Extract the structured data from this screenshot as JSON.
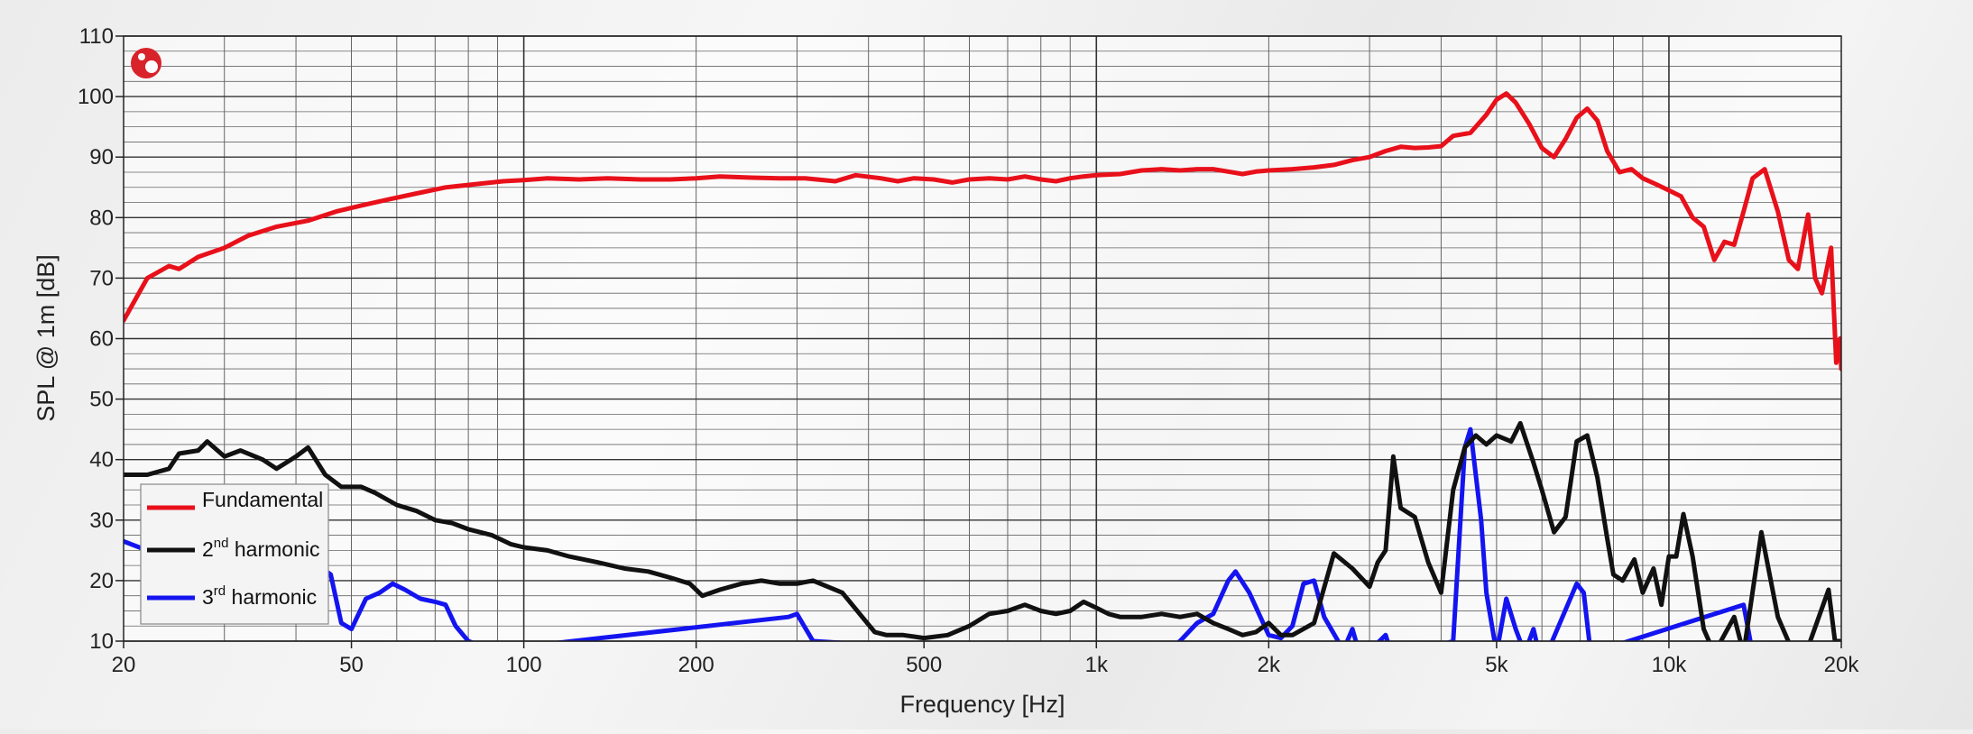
{
  "chart_data": {
    "type": "line",
    "title": "",
    "xlabel": "Frequency [Hz]",
    "ylabel": "SPL @ 1m [dB]",
    "x_scale": "log",
    "xlim": [
      20,
      20000
    ],
    "ylim": [
      10,
      110
    ],
    "grid": true,
    "legend_position": "bottom-left",
    "x_ticks": [
      {
        "value": 20,
        "label": "20"
      },
      {
        "value": 50,
        "label": "50"
      },
      {
        "value": 100,
        "label": "100"
      },
      {
        "value": 200,
        "label": "200"
      },
      {
        "value": 500,
        "label": "500"
      },
      {
        "value": 1000,
        "label": "1k"
      },
      {
        "value": 2000,
        "label": "2k"
      },
      {
        "value": 5000,
        "label": "5k"
      },
      {
        "value": 10000,
        "label": "10k"
      },
      {
        "value": 20000,
        "label": "20k"
      }
    ],
    "y_ticks": [
      10,
      20,
      30,
      40,
      50,
      60,
      70,
      80,
      90,
      100,
      110
    ],
    "series": [
      {
        "name": "Fundamental",
        "color": "#e8101a",
        "points": [
          [
            20,
            63
          ],
          [
            22,
            70
          ],
          [
            24,
            72
          ],
          [
            25,
            71.5
          ],
          [
            27,
            73.5
          ],
          [
            30,
            75
          ],
          [
            33,
            77
          ],
          [
            37,
            78.5
          ],
          [
            42,
            79.5
          ],
          [
            47,
            81
          ],
          [
            52,
            82
          ],
          [
            58,
            83
          ],
          [
            65,
            84
          ],
          [
            73,
            85
          ],
          [
            82,
            85.5
          ],
          [
            92,
            86
          ],
          [
            100,
            86.2
          ],
          [
            110,
            86.5
          ],
          [
            125,
            86.3
          ],
          [
            140,
            86.5
          ],
          [
            160,
            86.3
          ],
          [
            180,
            86.3
          ],
          [
            200,
            86.5
          ],
          [
            220,
            86.8
          ],
          [
            250,
            86.6
          ],
          [
            280,
            86.5
          ],
          [
            310,
            86.5
          ],
          [
            350,
            86
          ],
          [
            380,
            87
          ],
          [
            420,
            86.5
          ],
          [
            450,
            86
          ],
          [
            480,
            86.5
          ],
          [
            520,
            86.3
          ],
          [
            560,
            85.8
          ],
          [
            600,
            86.3
          ],
          [
            650,
            86.5
          ],
          [
            700,
            86.3
          ],
          [
            750,
            86.8
          ],
          [
            800,
            86.3
          ],
          [
            850,
            86
          ],
          [
            900,
            86.5
          ],
          [
            950,
            86.8
          ],
          [
            1000,
            87
          ],
          [
            1100,
            87.2
          ],
          [
            1200,
            87.8
          ],
          [
            1300,
            88
          ],
          [
            1400,
            87.8
          ],
          [
            1500,
            88
          ],
          [
            1600,
            88
          ],
          [
            1700,
            87.6
          ],
          [
            1800,
            87.2
          ],
          [
            1900,
            87.6
          ],
          [
            2000,
            87.8
          ],
          [
            2200,
            88
          ],
          [
            2400,
            88.3
          ],
          [
            2600,
            88.7
          ],
          [
            2800,
            89.5
          ],
          [
            3000,
            90
          ],
          [
            3200,
            91
          ],
          [
            3400,
            91.7
          ],
          [
            3600,
            91.5
          ],
          [
            3800,
            91.6
          ],
          [
            4000,
            91.8
          ],
          [
            4200,
            93.5
          ],
          [
            4500,
            94
          ],
          [
            4800,
            97
          ],
          [
            5000,
            99.5
          ],
          [
            5200,
            100.5
          ],
          [
            5400,
            99
          ],
          [
            5700,
            95.5
          ],
          [
            6000,
            91.5
          ],
          [
            6300,
            90
          ],
          [
            6600,
            93
          ],
          [
            6900,
            96.5
          ],
          [
            7200,
            98
          ],
          [
            7500,
            96
          ],
          [
            7800,
            91
          ],
          [
            8200,
            87.5
          ],
          [
            8600,
            88
          ],
          [
            9000,
            86.5
          ],
          [
            9500,
            85.5
          ],
          [
            10000,
            84.5
          ],
          [
            10500,
            83.5
          ],
          [
            11000,
            80
          ],
          [
            11500,
            78.5
          ],
          [
            12000,
            73
          ],
          [
            12500,
            76
          ],
          [
            13000,
            75.5
          ],
          [
            13500,
            81
          ],
          [
            14000,
            86.5
          ],
          [
            14700,
            88
          ],
          [
            15500,
            81
          ],
          [
            16200,
            73
          ],
          [
            16800,
            71.5
          ],
          [
            17500,
            80.5
          ],
          [
            18000,
            70
          ],
          [
            18500,
            67.5
          ],
          [
            19200,
            75
          ],
          [
            19600,
            56
          ],
          [
            19900,
            60
          ],
          [
            20000,
            55
          ]
        ]
      },
      {
        "name": "2nd harmonic",
        "color": "#111111",
        "points": [
          [
            20,
            37.5
          ],
          [
            22,
            37.5
          ],
          [
            24,
            38.5
          ],
          [
            25,
            41
          ],
          [
            27,
            41.5
          ],
          [
            28,
            43
          ],
          [
            30,
            40.5
          ],
          [
            32,
            41.5
          ],
          [
            35,
            40
          ],
          [
            37,
            38.5
          ],
          [
            40,
            40.5
          ],
          [
            42,
            42
          ],
          [
            45,
            37.5
          ],
          [
            48,
            35.5
          ],
          [
            52,
            35.5
          ],
          [
            55,
            34.5
          ],
          [
            60,
            32.5
          ],
          [
            65,
            31.5
          ],
          [
            70,
            30
          ],
          [
            75,
            29.5
          ],
          [
            80,
            28.5
          ],
          [
            88,
            27.5
          ],
          [
            95,
            26
          ],
          [
            100,
            25.5
          ],
          [
            110,
            25
          ],
          [
            120,
            24
          ],
          [
            135,
            23
          ],
          [
            150,
            22
          ],
          [
            165,
            21.5
          ],
          [
            180,
            20.5
          ],
          [
            195,
            19.5
          ],
          [
            205,
            17.5
          ],
          [
            220,
            18.5
          ],
          [
            240,
            19.5
          ],
          [
            260,
            20
          ],
          [
            280,
            19.5
          ],
          [
            300,
            19.5
          ],
          [
            320,
            20
          ],
          [
            360,
            18
          ],
          [
            390,
            14
          ],
          [
            410,
            11.5
          ],
          [
            430,
            11
          ],
          [
            460,
            11
          ],
          [
            500,
            10.5
          ],
          [
            550,
            11
          ],
          [
            600,
            12.5
          ],
          [
            650,
            14.5
          ],
          [
            700,
            15
          ],
          [
            750,
            16
          ],
          [
            800,
            15
          ],
          [
            850,
            14.5
          ],
          [
            900,
            15
          ],
          [
            950,
            16.5
          ],
          [
            1000,
            15.5
          ],
          [
            1050,
            14.5
          ],
          [
            1100,
            14
          ],
          [
            1200,
            14
          ],
          [
            1300,
            14.5
          ],
          [
            1400,
            14
          ],
          [
            1500,
            14.5
          ],
          [
            1600,
            13
          ],
          [
            1700,
            12
          ],
          [
            1800,
            11
          ],
          [
            1900,
            11.5
          ],
          [
            2000,
            13
          ],
          [
            2100,
            11
          ],
          [
            2200,
            11
          ],
          [
            2400,
            13
          ],
          [
            2600,
            24.5
          ],
          [
            2800,
            22
          ],
          [
            3000,
            19
          ],
          [
            3100,
            23
          ],
          [
            3200,
            25
          ],
          [
            3300,
            40.5
          ],
          [
            3400,
            32
          ],
          [
            3600,
            30.5
          ],
          [
            3800,
            23
          ],
          [
            4000,
            18
          ],
          [
            4200,
            35
          ],
          [
            4400,
            42
          ],
          [
            4600,
            44
          ],
          [
            4800,
            42.5
          ],
          [
            5000,
            44
          ],
          [
            5300,
            43
          ],
          [
            5500,
            46
          ],
          [
            5800,
            39.5
          ],
          [
            6000,
            35
          ],
          [
            6300,
            28
          ],
          [
            6600,
            30.5
          ],
          [
            6900,
            43
          ],
          [
            7200,
            44
          ],
          [
            7500,
            37
          ],
          [
            7800,
            27
          ],
          [
            8000,
            21
          ],
          [
            8300,
            20
          ],
          [
            8700,
            23.5
          ],
          [
            9000,
            18
          ],
          [
            9400,
            22
          ],
          [
            9700,
            16
          ],
          [
            10000,
            24
          ],
          [
            10300,
            24
          ],
          [
            10600,
            31
          ],
          [
            11000,
            24
          ],
          [
            11500,
            12
          ],
          [
            12000,
            8
          ],
          [
            13000,
            14
          ],
          [
            13500,
            8
          ],
          [
            14500,
            28
          ],
          [
            15500,
            14
          ],
          [
            16500,
            8
          ],
          [
            17500,
            9
          ],
          [
            19000,
            18.5
          ],
          [
            19500,
            10
          ],
          [
            20000,
            10
          ]
        ]
      },
      {
        "name": "3rd harmonic",
        "color": "#1414f0",
        "points": [
          [
            20,
            26.5
          ],
          [
            22,
            25
          ],
          [
            25,
            24
          ],
          [
            28,
            23
          ],
          [
            32,
            23
          ],
          [
            36,
            22.5
          ],
          [
            40,
            22.5
          ],
          [
            43,
            23
          ],
          [
            46,
            21
          ],
          [
            48,
            13
          ],
          [
            50,
            12
          ],
          [
            53,
            17
          ],
          [
            56,
            18
          ],
          [
            59,
            19.5
          ],
          [
            62,
            18.5
          ],
          [
            66,
            17
          ],
          [
            70,
            16.5
          ],
          [
            73,
            16
          ],
          [
            76,
            12.5
          ],
          [
            80,
            10
          ],
          [
            88,
            8.5
          ],
          [
            290,
            14
          ],
          [
            300,
            14.5
          ],
          [
            320,
            10
          ],
          [
            1050,
            7
          ],
          [
            1150,
            9.5
          ],
          [
            1300,
            8
          ],
          [
            1400,
            10
          ],
          [
            1500,
            13
          ],
          [
            1600,
            14.5
          ],
          [
            1700,
            20
          ],
          [
            1750,
            21.5
          ],
          [
            1850,
            18
          ],
          [
            2000,
            11
          ],
          [
            2100,
            10.5
          ],
          [
            2200,
            12.5
          ],
          [
            2300,
            19.5
          ],
          [
            2400,
            20
          ],
          [
            2500,
            14
          ],
          [
            2700,
            8.5
          ],
          [
            2800,
            12
          ],
          [
            2900,
            7
          ],
          [
            3200,
            11
          ],
          [
            3300,
            7
          ],
          [
            4200,
            10
          ],
          [
            4400,
            42
          ],
          [
            4500,
            45
          ],
          [
            4700,
            30
          ],
          [
            4800,
            18
          ],
          [
            5000,
            8
          ],
          [
            5200,
            17
          ],
          [
            5400,
            12
          ],
          [
            5600,
            8
          ],
          [
            5800,
            12
          ],
          [
            6000,
            6
          ],
          [
            6900,
            19.5
          ],
          [
            7100,
            18
          ],
          [
            7300,
            8
          ],
          [
            13500,
            16
          ],
          [
            14000,
            8
          ]
        ]
      }
    ]
  }
}
